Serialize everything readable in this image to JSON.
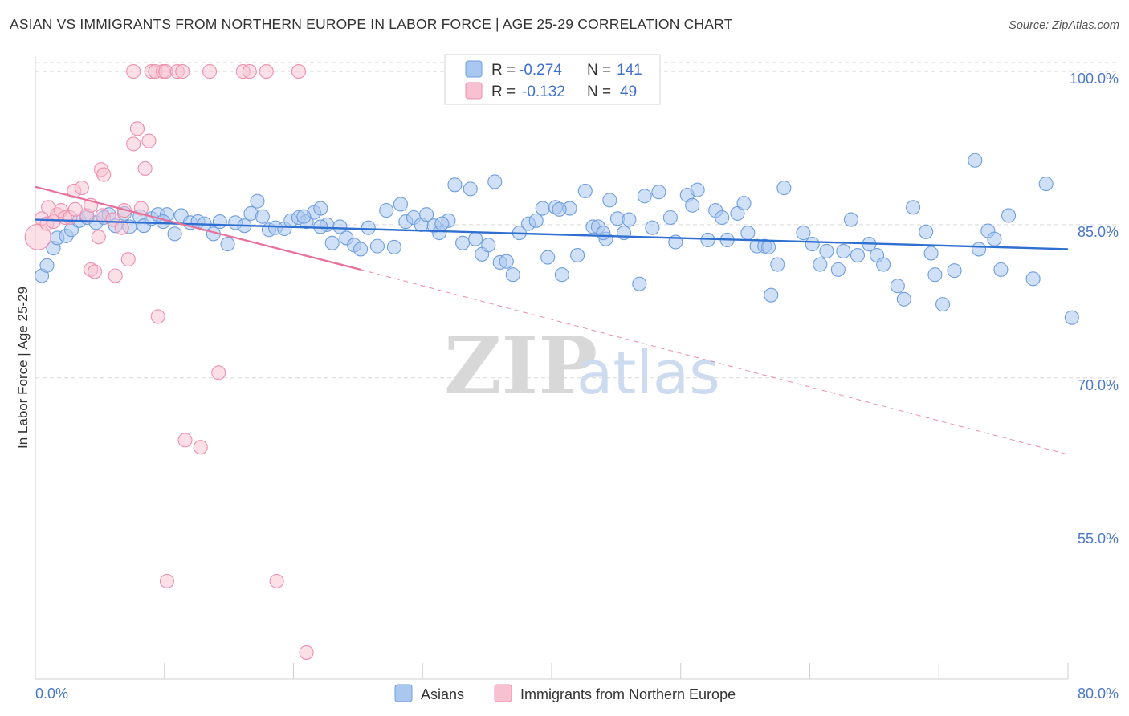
{
  "header": {
    "title": "ASIAN VS IMMIGRANTS FROM NORTHERN EUROPE IN LABOR FORCE | AGE 25-29 CORRELATION CHART",
    "source": "Source: ZipAtlas.com"
  },
  "watermark": {
    "zip": "ZIP",
    "atlas": "atlas"
  },
  "colors": {
    "asian_fill": "#a9c7ef",
    "asian_stroke": "#6f9fe0",
    "asian_line": "#2e6fd0",
    "euro_fill": "#f7c1d2",
    "euro_stroke": "#ee8fae",
    "euro_line": "#e8709a",
    "axis_text": "#4a77c9",
    "grid": "#d9d9d9"
  },
  "legend_top": {
    "rows": [
      {
        "r_label": "R =",
        "r_value": "-0.274",
        "n_label": "N =",
        "n_value": "141"
      },
      {
        "r_label": "R =",
        "r_value": "-0.132",
        "n_label": "N =",
        "n_value": "49"
      }
    ]
  },
  "legend_bottom": {
    "items": [
      "Asians",
      "Immigrants from Northern Europe"
    ]
  },
  "chart_data": {
    "type": "scatter",
    "title": "ASIAN VS IMMIGRANTS FROM NORTHERN EUROPE IN LABOR FORCE | AGE 25-29 CORRELATION CHART",
    "xlabel": "",
    "ylabel": "In Labor Force | Age 25-29",
    "x_tick_labels": [
      "0.0%",
      "80.0%"
    ],
    "y_tick_labels": [
      "100.0%",
      "85.0%",
      "70.0%",
      "55.0%"
    ],
    "xlim": [
      0,
      80
    ],
    "ylim": [
      40.5,
      101.5
    ],
    "y_ticks": [
      100,
      85,
      70,
      55
    ],
    "grid": true,
    "legend_position": "top-center",
    "series": [
      {
        "name": "Asians",
        "R": -0.274,
        "N": 141,
        "trend": {
          "x": [
            0,
            80
          ],
          "y": [
            85.5,
            82.6
          ],
          "style": "solid"
        },
        "points": [
          [
            0.5,
            80.0
          ],
          [
            0.9,
            81.0
          ],
          [
            1.4,
            82.7
          ],
          [
            1.7,
            83.7
          ],
          [
            2.4,
            83.9
          ],
          [
            2.8,
            84.5
          ],
          [
            3.4,
            85.4
          ],
          [
            4.0,
            85.7
          ],
          [
            4.7,
            85.2
          ],
          [
            5.3,
            85.7
          ],
          [
            5.7,
            86.0
          ],
          [
            6.2,
            84.9
          ],
          [
            6.9,
            86.1
          ],
          [
            7.3,
            84.8
          ],
          [
            8.1,
            85.8
          ],
          [
            8.4,
            84.9
          ],
          [
            9.0,
            85.6
          ],
          [
            9.5,
            86.0
          ],
          [
            10.2,
            86.0
          ],
          [
            10.8,
            84.1
          ],
          [
            11.3,
            85.9
          ],
          [
            12.0,
            85.2
          ],
          [
            12.6,
            85.3
          ],
          [
            13.1,
            85.1
          ],
          [
            13.8,
            84.1
          ],
          [
            14.3,
            85.3
          ],
          [
            14.9,
            83.1
          ],
          [
            15.5,
            85.2
          ],
          [
            16.2,
            84.9
          ],
          [
            16.7,
            86.1
          ],
          [
            17.2,
            87.3
          ],
          [
            17.6,
            85.8
          ],
          [
            18.1,
            84.5
          ],
          [
            18.6,
            84.7
          ],
          [
            19.3,
            84.6
          ],
          [
            19.8,
            85.4
          ],
          [
            20.4,
            85.7
          ],
          [
            21.0,
            85.3
          ],
          [
            21.6,
            86.2
          ],
          [
            22.1,
            86.6
          ],
          [
            22.6,
            85.0
          ],
          [
            23.0,
            83.2
          ],
          [
            23.6,
            84.8
          ],
          [
            24.1,
            83.7
          ],
          [
            24.7,
            83.0
          ],
          [
            25.2,
            82.6
          ],
          [
            25.8,
            84.7
          ],
          [
            26.5,
            82.9
          ],
          [
            27.2,
            86.4
          ],
          [
            27.8,
            82.8
          ],
          [
            28.3,
            87.0
          ],
          [
            28.7,
            85.3
          ],
          [
            29.3,
            85.7
          ],
          [
            29.9,
            85.0
          ],
          [
            30.3,
            86.0
          ],
          [
            30.9,
            84.9
          ],
          [
            31.3,
            84.2
          ],
          [
            32.0,
            85.4
          ],
          [
            32.5,
            88.9
          ],
          [
            33.1,
            83.2
          ],
          [
            33.7,
            88.5
          ],
          [
            34.1,
            83.6
          ],
          [
            34.6,
            82.1
          ],
          [
            35.1,
            83.0
          ],
          [
            35.6,
            89.2
          ],
          [
            36.0,
            81.3
          ],
          [
            36.5,
            81.4
          ],
          [
            37.0,
            80.1
          ],
          [
            37.5,
            84.2
          ],
          [
            38.2,
            85.1
          ],
          [
            38.8,
            85.4
          ],
          [
            39.3,
            86.6
          ],
          [
            39.7,
            81.8
          ],
          [
            40.3,
            86.7
          ],
          [
            40.8,
            80.1
          ],
          [
            41.4,
            86.6
          ],
          [
            42.0,
            82.0
          ],
          [
            42.6,
            88.3
          ],
          [
            43.2,
            84.8
          ],
          [
            43.6,
            84.8
          ],
          [
            44.2,
            83.6
          ],
          [
            44.5,
            87.4
          ],
          [
            45.1,
            85.6
          ],
          [
            45.6,
            84.2
          ],
          [
            46.0,
            85.5
          ],
          [
            46.8,
            79.2
          ],
          [
            47.2,
            87.8
          ],
          [
            47.8,
            84.7
          ],
          [
            48.3,
            88.2
          ],
          [
            49.2,
            85.7
          ],
          [
            49.6,
            83.3
          ],
          [
            50.5,
            87.9
          ],
          [
            50.9,
            86.9
          ],
          [
            51.3,
            88.4
          ],
          [
            52.1,
            83.5
          ],
          [
            52.7,
            86.4
          ],
          [
            53.2,
            85.7
          ],
          [
            53.6,
            83.5
          ],
          [
            54.4,
            86.1
          ],
          [
            54.9,
            87.1
          ],
          [
            55.2,
            84.2
          ],
          [
            55.9,
            82.9
          ],
          [
            56.5,
            82.9
          ],
          [
            57.0,
            78.1
          ],
          [
            57.5,
            81.1
          ],
          [
            58.0,
            88.6
          ],
          [
            59.5,
            84.2
          ],
          [
            60.2,
            83.1
          ],
          [
            60.8,
            81.1
          ],
          [
            61.3,
            82.4
          ],
          [
            62.2,
            80.6
          ],
          [
            62.6,
            82.4
          ],
          [
            63.2,
            85.5
          ],
          [
            63.7,
            82.0
          ],
          [
            64.6,
            83.1
          ],
          [
            65.2,
            82.0
          ],
          [
            65.7,
            81.1
          ],
          [
            66.8,
            79.0
          ],
          [
            67.3,
            77.7
          ],
          [
            68.0,
            86.7
          ],
          [
            69.0,
            84.3
          ],
          [
            69.4,
            82.2
          ],
          [
            69.7,
            80.1
          ],
          [
            70.3,
            77.2
          ],
          [
            71.2,
            80.5
          ],
          [
            72.8,
            91.3
          ],
          [
            73.1,
            82.6
          ],
          [
            73.8,
            84.4
          ],
          [
            74.3,
            83.6
          ],
          [
            74.8,
            80.6
          ],
          [
            75.4,
            85.9
          ],
          [
            77.3,
            79.7
          ],
          [
            78.3,
            89.0
          ],
          [
            80.3,
            75.9
          ],
          [
            31.5,
            85.1
          ],
          [
            20.8,
            85.8
          ],
          [
            9.9,
            85.3
          ],
          [
            22.1,
            84.8
          ],
          [
            40.6,
            86.5
          ],
          [
            56.8,
            82.8
          ],
          [
            44.0,
            84.2
          ]
        ]
      },
      {
        "name": "Immigrants from Northern Europe",
        "R": -0.132,
        "N": 49,
        "trend_solid": {
          "x": [
            0,
            25.2
          ],
          "y": [
            88.7,
            80.6
          ]
        },
        "trend_dashed": {
          "x": [
            25.2,
            80
          ],
          "y": [
            80.6,
            62.5
          ]
        },
        "points": [
          [
            0.2,
            83.8
          ],
          [
            0.5,
            85.6
          ],
          [
            0.9,
            85.1
          ],
          [
            1.0,
            86.7
          ],
          [
            1.4,
            85.3
          ],
          [
            1.7,
            86.0
          ],
          [
            2.0,
            86.4
          ],
          [
            2.3,
            85.7
          ],
          [
            2.7,
            85.7
          ],
          [
            3.1,
            86.5
          ],
          [
            3.0,
            88.3
          ],
          [
            3.6,
            88.6
          ],
          [
            4.0,
            85.9
          ],
          [
            4.3,
            86.9
          ],
          [
            4.3,
            80.6
          ],
          [
            4.6,
            80.4
          ],
          [
            4.9,
            83.8
          ],
          [
            5.2,
            85.9
          ],
          [
            5.1,
            90.4
          ],
          [
            5.3,
            89.9
          ],
          [
            6.0,
            85.5
          ],
          [
            6.2,
            80.0
          ],
          [
            6.7,
            84.7
          ],
          [
            6.9,
            86.4
          ],
          [
            7.2,
            81.6
          ],
          [
            7.6,
            92.9
          ],
          [
            7.9,
            94.4
          ],
          [
            8.2,
            86.6
          ],
          [
            8.5,
            90.5
          ],
          [
            8.8,
            93.2
          ],
          [
            7.6,
            100.0
          ],
          [
            9.0,
            100.0
          ],
          [
            9.3,
            100.0
          ],
          [
            9.9,
            100.0
          ],
          [
            10.1,
            100.0
          ],
          [
            11.0,
            100.0
          ],
          [
            11.4,
            100.0
          ],
          [
            13.5,
            100.0
          ],
          [
            16.1,
            100.0
          ],
          [
            16.6,
            100.0
          ],
          [
            17.9,
            100.0
          ],
          [
            20.4,
            100.0
          ],
          [
            9.5,
            76.0
          ],
          [
            14.2,
            70.5
          ],
          [
            11.6,
            63.9
          ],
          [
            12.8,
            63.2
          ],
          [
            10.2,
            50.1
          ],
          [
            18.7,
            50.1
          ],
          [
            21.0,
            43.1
          ]
        ]
      }
    ]
  }
}
